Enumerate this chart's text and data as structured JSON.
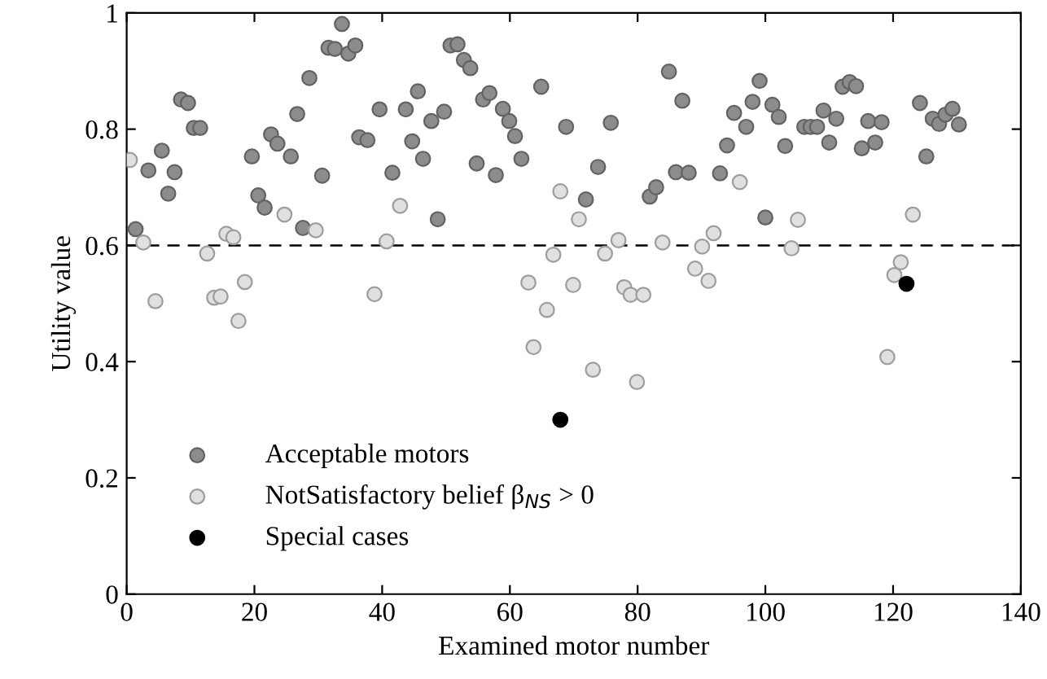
{
  "chart_data": {
    "type": "scatter",
    "xlabel": "Examined motor number",
    "ylabel": "Utility value",
    "xlim": [
      0,
      140
    ],
    "xticks": [
      0,
      20,
      40,
      60,
      80,
      100,
      120,
      140
    ],
    "ylim": [
      0,
      1
    ],
    "yticks": [
      0,
      0.2,
      0.4,
      0.6,
      0.8,
      1
    ],
    "grid": false,
    "legend": "bottom left",
    "marker": "circle",
    "ref_lines": [
      {
        "axis": "y",
        "value": 0.6,
        "color": "#000000",
        "line_style": "dashed"
      }
    ],
    "series": [
      {
        "name": "Acceptable motors",
        "color": "#8c8c8c",
        "x": [
          1.4,
          3.4,
          5.5,
          6.5,
          7.5,
          8.5,
          9.6,
          10.5,
          11.5,
          19.6,
          20.6,
          21.6,
          22.6,
          23.6,
          25.7,
          26.7,
          27.6,
          28.6,
          30.6,
          31.6,
          32.6,
          33.7,
          34.7,
          35.8,
          36.4,
          37.7,
          39.6,
          41.6,
          43.7,
          44.7,
          45.6,
          46.4,
          47.7,
          48.7,
          49.7,
          50.7,
          51.8,
          52.8,
          53.8,
          54.8,
          55.8,
          56.8,
          57.8,
          58.9,
          59.9,
          60.8,
          61.8,
          64.9,
          68.8,
          71.9,
          73.8,
          75.8,
          81.9,
          82.9,
          84.9,
          86.0,
          87.0,
          88.0,
          92.9,
          94.0,
          95.1,
          97.0,
          98.0,
          99.1,
          100.0,
          101.1,
          102.1,
          103.1,
          106.1,
          107.1,
          108.1,
          109.1,
          110.0,
          111.1,
          112.1,
          113.2,
          114.2,
          115.1,
          116.1,
          117.2,
          118.2,
          124.2,
          125.2,
          126.2,
          127.2,
          128.2,
          129.3,
          130.3
        ],
        "values": [
          0.628,
          0.729,
          0.763,
          0.689,
          0.726,
          0.851,
          0.845,
          0.802,
          0.802,
          0.753,
          0.686,
          0.665,
          0.791,
          0.775,
          0.753,
          0.826,
          0.63,
          0.888,
          0.72,
          0.94,
          0.938,
          0.981,
          0.93,
          0.944,
          0.786,
          0.781,
          0.834,
          0.725,
          0.834,
          0.779,
          0.865,
          0.749,
          0.814,
          0.645,
          0.83,
          0.944,
          0.946,
          0.919,
          0.905,
          0.741,
          0.851,
          0.862,
          0.721,
          0.835,
          0.814,
          0.788,
          0.749,
          0.873,
          0.804,
          0.679,
          0.735,
          0.811,
          0.684,
          0.7,
          0.899,
          0.726,
          0.849,
          0.725,
          0.724,
          0.772,
          0.828,
          0.804,
          0.847,
          0.883,
          0.648,
          0.842,
          0.821,
          0.771,
          0.804,
          0.804,
          0.804,
          0.832,
          0.777,
          0.818,
          0.873,
          0.881,
          0.874,
          0.767,
          0.814,
          0.777,
          0.812,
          0.845,
          0.753,
          0.818,
          0.809,
          0.825,
          0.835,
          0.808
        ]
      },
      {
        "name": "NotSatisfactory belief β$_{NS}$ > 0",
        "color": "#e0e0e0",
        "x": [
          0.5,
          2.6,
          4.5,
          12.6,
          13.7,
          14.7,
          15.6,
          16.7,
          17.5,
          18.5,
          24.7,
          29.6,
          38.8,
          40.7,
          42.8,
          62.9,
          63.7,
          65.8,
          66.8,
          67.9,
          69.9,
          70.8,
          73.0,
          74.9,
          77.0,
          77.9,
          78.9,
          79.9,
          80.9,
          83.9,
          89.0,
          90.1,
          91.1,
          91.9,
          96.0,
          104.1,
          105.1,
          119.1,
          120.2,
          121.2,
          123.1
        ],
        "values": [
          0.747,
          0.605,
          0.504,
          0.586,
          0.51,
          0.512,
          0.62,
          0.614,
          0.47,
          0.537,
          0.653,
          0.626,
          0.516,
          0.607,
          0.668,
          0.536,
          0.425,
          0.489,
          0.584,
          0.693,
          0.532,
          0.645,
          0.386,
          0.586,
          0.609,
          0.528,
          0.515,
          0.365,
          0.515,
          0.605,
          0.56,
          0.598,
          0.539,
          0.621,
          0.709,
          0.595,
          0.644,
          0.408,
          0.549,
          0.571,
          0.653
        ]
      },
      {
        "name": "Special cases",
        "color": "#000000",
        "x": [
          67.9,
          122.1
        ],
        "values": [
          0.3,
          0.534
        ]
      }
    ]
  }
}
